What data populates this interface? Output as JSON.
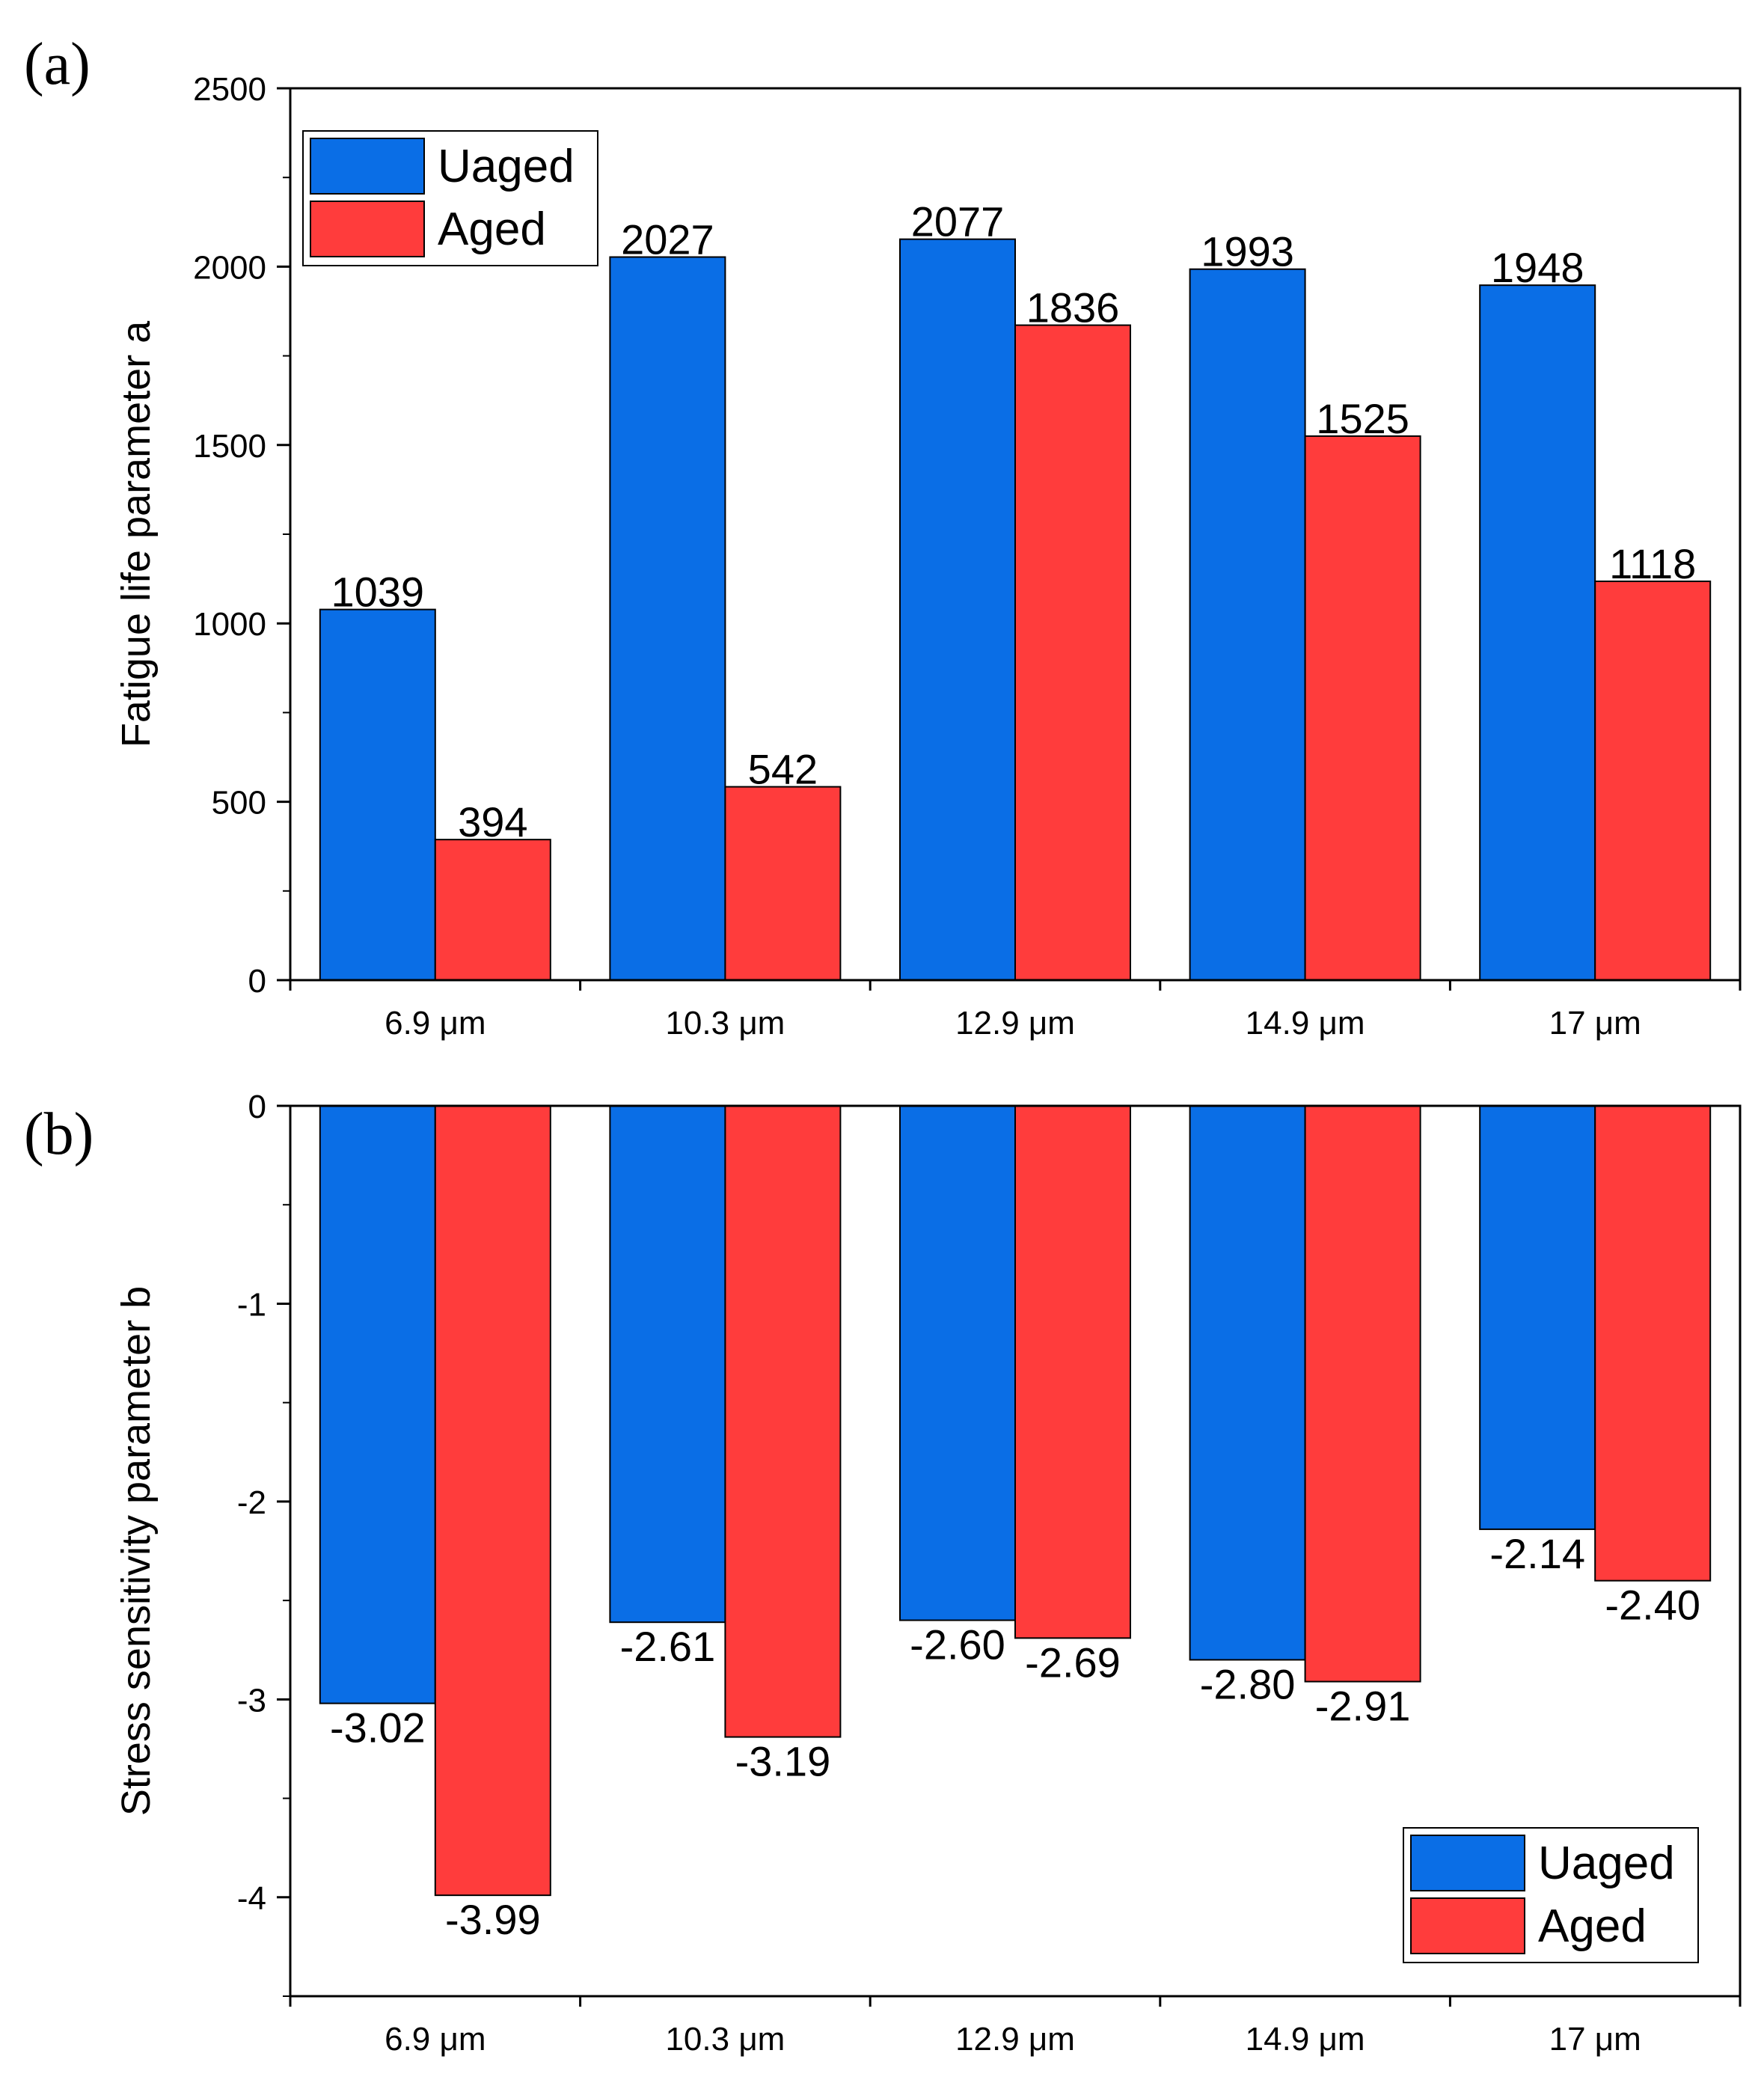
{
  "colors": {
    "uaged": "#0A6EE6",
    "aged": "#FF3C3C",
    "axis": "#000000",
    "background": "#FFFFFF"
  },
  "chart_data": [
    {
      "panel_label": "(a)",
      "type": "bar",
      "categories": [
        "6.9 μm",
        "10.3 μm",
        "12.9 μm",
        "14.9 μm",
        "17 μm"
      ],
      "series": [
        {
          "name": "Uaged",
          "values": [
            1039,
            2027,
            2077,
            1993,
            1948
          ],
          "labels": [
            "1039",
            "2027",
            "2077",
            "1993",
            "1948"
          ]
        },
        {
          "name": "Aged",
          "values": [
            394,
            542,
            1836,
            1525,
            1118
          ],
          "labels": [
            "394",
            "542",
            "1836",
            "1525",
            "1118"
          ]
        }
      ],
      "xlabel": "",
      "ylabel": "Fatigue life parameter a",
      "ylim": [
        0,
        2500
      ],
      "yticks": [
        0,
        500,
        1000,
        1500,
        2000,
        2500
      ],
      "ytick_labels": [
        "0",
        "500",
        "1000",
        "1500",
        "2000",
        "2500"
      ],
      "grid": false,
      "legend": {
        "position": "top-left",
        "entries": [
          "Uaged",
          "Aged"
        ]
      }
    },
    {
      "panel_label": "(b)",
      "type": "bar",
      "categories": [
        "6.9 μm",
        "10.3 μm",
        "12.9 μm",
        "14.9 μm",
        "17 μm"
      ],
      "series": [
        {
          "name": "Uaged",
          "values": [
            -3.02,
            -2.61,
            -2.6,
            -2.8,
            -2.14
          ],
          "labels": [
            "-3.02",
            "-2.61",
            "-2.60",
            "-2.80",
            "-2.14"
          ]
        },
        {
          "name": "Aged",
          "values": [
            -3.99,
            -3.19,
            -2.69,
            -2.91,
            -2.4
          ],
          "labels": [
            "-3.99",
            "-3.19",
            "-2.69",
            "-2.91",
            "-2.40"
          ]
        }
      ],
      "xlabel": "",
      "ylabel": "Stress sensitivity parameter b",
      "ylim": [
        -4.5,
        0
      ],
      "yticks": [
        0,
        -1,
        -2,
        -3,
        -4
      ],
      "ytick_labels": [
        "0",
        "-1",
        "-2",
        "-3",
        "-4"
      ],
      "grid": false,
      "legend": {
        "position": "bottom-right",
        "entries": [
          "Uaged",
          "Aged"
        ]
      }
    }
  ]
}
